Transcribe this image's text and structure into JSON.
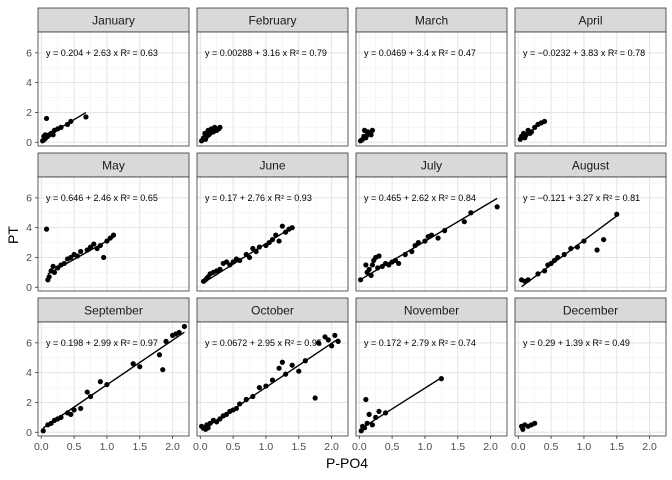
{
  "chart_data": {
    "type": "scatter",
    "xlabel": "P-PO4",
    "ylabel": "PT",
    "xlim": [
      -0.05,
      2.25
    ],
    "ylim": [
      -0.25,
      7.4
    ],
    "xticks": [
      0.0,
      0.5,
      1.0,
      1.5,
      2.0
    ],
    "xtick_labels": [
      "0.0",
      "0.5",
      "1.0",
      "1.5",
      "2.0"
    ],
    "yticks": [
      0,
      2,
      4,
      6
    ],
    "ytick_labels": [
      "0",
      "2",
      "4",
      "6"
    ],
    "grid": true,
    "facets": [
      {
        "name": "January",
        "equation": "y = 0.204 + 2.63 x   R² = 0.63",
        "intercept": 0.204,
        "slope": 2.63,
        "fit_x": [
          0.02,
          0.68
        ],
        "points": [
          [
            0.02,
            0.1
          ],
          [
            0.04,
            0.4
          ],
          [
            0.05,
            0.2
          ],
          [
            0.06,
            0.5
          ],
          [
            0.07,
            0.3
          ],
          [
            0.08,
            1.6
          ],
          [
            0.1,
            0.4
          ],
          [
            0.12,
            0.5
          ],
          [
            0.15,
            0.6
          ],
          [
            0.18,
            0.5
          ],
          [
            0.2,
            0.8
          ],
          [
            0.25,
            0.9
          ],
          [
            0.3,
            1.0
          ],
          [
            0.4,
            1.2
          ],
          [
            0.45,
            1.4
          ],
          [
            0.68,
            1.7
          ]
        ]
      },
      {
        "name": "February",
        "equation": "y = 0.00288 + 3.16 x   R² = 0.79",
        "intercept": 0.00288,
        "slope": 3.16,
        "fit_x": [
          0.02,
          0.3
        ],
        "points": [
          [
            0.02,
            0.1
          ],
          [
            0.05,
            0.3
          ],
          [
            0.07,
            0.6
          ],
          [
            0.08,
            0.2
          ],
          [
            0.1,
            0.4
          ],
          [
            0.12,
            0.8
          ],
          [
            0.13,
            0.5
          ],
          [
            0.15,
            0.6
          ],
          [
            0.17,
            0.9
          ],
          [
            0.2,
            0.7
          ],
          [
            0.22,
            1.0
          ],
          [
            0.25,
            0.8
          ],
          [
            0.28,
            0.9
          ],
          [
            0.3,
            1.0
          ]
        ]
      },
      {
        "name": "March",
        "equation": "y = 0.0469 + 3.4 x   R² = 0.47",
        "intercept": 0.0469,
        "slope": 3.4,
        "fit_x": [
          0.02,
          0.2
        ],
        "points": [
          [
            0.02,
            0.1
          ],
          [
            0.05,
            0.2
          ],
          [
            0.07,
            0.4
          ],
          [
            0.08,
            0.8
          ],
          [
            0.1,
            0.3
          ],
          [
            0.12,
            0.5
          ],
          [
            0.13,
            0.7
          ],
          [
            0.15,
            0.6
          ],
          [
            0.18,
            0.5
          ],
          [
            0.2,
            0.8
          ]
        ]
      },
      {
        "name": "April",
        "equation": "y = −0.0232 + 3.83 x   R² = 0.78",
        "intercept": -0.0232,
        "slope": 3.83,
        "fit_x": [
          0.03,
          0.4
        ],
        "points": [
          [
            0.03,
            0.2
          ],
          [
            0.05,
            0.4
          ],
          [
            0.08,
            0.6
          ],
          [
            0.1,
            0.3
          ],
          [
            0.12,
            0.5
          ],
          [
            0.15,
            0.8
          ],
          [
            0.18,
            0.6
          ],
          [
            0.2,
            0.7
          ],
          [
            0.25,
            1.0
          ],
          [
            0.3,
            1.2
          ],
          [
            0.35,
            1.3
          ],
          [
            0.4,
            1.4
          ]
        ]
      },
      {
        "name": "May",
        "equation": "y = 0.646 + 2.46 x   R² = 0.65",
        "intercept": 0.646,
        "slope": 2.46,
        "fit_x": [
          0.1,
          1.1
        ],
        "points": [
          [
            0.08,
            3.9
          ],
          [
            0.1,
            0.5
          ],
          [
            0.12,
            0.7
          ],
          [
            0.15,
            1.1
          ],
          [
            0.18,
            1.4
          ],
          [
            0.2,
            1.0
          ],
          [
            0.25,
            1.3
          ],
          [
            0.3,
            1.5
          ],
          [
            0.35,
            1.6
          ],
          [
            0.4,
            1.9
          ],
          [
            0.45,
            2.0
          ],
          [
            0.5,
            2.2
          ],
          [
            0.55,
            2.1
          ],
          [
            0.6,
            2.4
          ],
          [
            0.7,
            2.5
          ],
          [
            0.75,
            2.7
          ],
          [
            0.8,
            2.9
          ],
          [
            0.85,
            2.6
          ],
          [
            0.9,
            2.8
          ],
          [
            0.95,
            2.0
          ],
          [
            1.0,
            3.1
          ],
          [
            1.05,
            3.3
          ],
          [
            1.1,
            3.5
          ]
        ]
      },
      {
        "name": "June",
        "equation": "y = 0.17 + 2.76 x   R² = 0.93",
        "intercept": 0.17,
        "slope": 2.76,
        "fit_x": [
          0.05,
          1.4
        ],
        "points": [
          [
            0.05,
            0.4
          ],
          [
            0.08,
            0.5
          ],
          [
            0.1,
            0.6
          ],
          [
            0.12,
            0.7
          ],
          [
            0.15,
            0.9
          ],
          [
            0.2,
            1.0
          ],
          [
            0.25,
            1.1
          ],
          [
            0.3,
            1.2
          ],
          [
            0.35,
            1.6
          ],
          [
            0.4,
            1.7
          ],
          [
            0.45,
            1.5
          ],
          [
            0.5,
            1.7
          ],
          [
            0.55,
            1.9
          ],
          [
            0.6,
            1.8
          ],
          [
            0.7,
            2.2
          ],
          [
            0.75,
            2.0
          ],
          [
            0.8,
            2.6
          ],
          [
            0.85,
            2.4
          ],
          [
            0.9,
            2.7
          ],
          [
            1.0,
            2.8
          ],
          [
            1.05,
            3.0
          ],
          [
            1.1,
            3.2
          ],
          [
            1.15,
            3.5
          ],
          [
            1.2,
            3.1
          ],
          [
            1.25,
            4.1
          ],
          [
            1.3,
            3.7
          ],
          [
            1.35,
            3.9
          ],
          [
            1.4,
            4.0
          ]
        ]
      },
      {
        "name": "July",
        "equation": "y = 0.465 + 2.62 x   R² = 0.84",
        "intercept": 0.465,
        "slope": 2.62,
        "fit_x": [
          0.02,
          2.1
        ],
        "points": [
          [
            0.02,
            0.5
          ],
          [
            0.1,
            1.5
          ],
          [
            0.12,
            1.0
          ],
          [
            0.15,
            1.2
          ],
          [
            0.18,
            0.8
          ],
          [
            0.2,
            1.5
          ],
          [
            0.22,
            1.8
          ],
          [
            0.25,
            2.0
          ],
          [
            0.28,
            1.3
          ],
          [
            0.3,
            2.1
          ],
          [
            0.35,
            1.4
          ],
          [
            0.4,
            1.6
          ],
          [
            0.45,
            1.5
          ],
          [
            0.5,
            1.7
          ],
          [
            0.55,
            1.8
          ],
          [
            0.6,
            1.6
          ],
          [
            0.7,
            2.2
          ],
          [
            0.8,
            2.4
          ],
          [
            0.85,
            2.8
          ],
          [
            0.9,
            3.0
          ],
          [
            1.0,
            3.1
          ],
          [
            1.05,
            3.4
          ],
          [
            1.1,
            3.5
          ],
          [
            1.2,
            3.3
          ],
          [
            1.3,
            3.8
          ],
          [
            1.6,
            4.4
          ],
          [
            1.7,
            5.0
          ],
          [
            2.1,
            5.4
          ]
        ]
      },
      {
        "name": "August",
        "equation": "y = −0.121 + 3.27 x   R² = 0.81",
        "intercept": -0.121,
        "slope": 3.27,
        "fit_x": [
          0.05,
          1.5
        ],
        "points": [
          [
            0.05,
            0.5
          ],
          [
            0.1,
            0.4
          ],
          [
            0.15,
            0.5
          ],
          [
            0.3,
            0.9
          ],
          [
            0.4,
            1.1
          ],
          [
            0.45,
            1.5
          ],
          [
            0.5,
            1.6
          ],
          [
            0.55,
            1.8
          ],
          [
            0.6,
            2.0
          ],
          [
            0.7,
            2.2
          ],
          [
            0.8,
            2.6
          ],
          [
            0.9,
            2.7
          ],
          [
            1.0,
            3.1
          ],
          [
            1.2,
            2.5
          ],
          [
            1.3,
            3.2
          ],
          [
            1.5,
            4.9
          ]
        ]
      },
      {
        "name": "September",
        "equation": "y = 0.198 + 2.99 x   R² = 0.97",
        "intercept": 0.198,
        "slope": 2.99,
        "fit_x": [
          0.03,
          2.18
        ],
        "points": [
          [
            0.03,
            0.1
          ],
          [
            0.1,
            0.5
          ],
          [
            0.15,
            0.6
          ],
          [
            0.2,
            0.8
          ],
          [
            0.25,
            0.9
          ],
          [
            0.3,
            1.0
          ],
          [
            0.4,
            1.3
          ],
          [
            0.45,
            1.2
          ],
          [
            0.5,
            1.5
          ],
          [
            0.6,
            1.6
          ],
          [
            0.7,
            2.7
          ],
          [
            0.75,
            2.4
          ],
          [
            0.9,
            3.4
          ],
          [
            1.0,
            3.2
          ],
          [
            1.4,
            4.6
          ],
          [
            1.5,
            4.4
          ],
          [
            1.8,
            5.2
          ],
          [
            1.85,
            4.2
          ],
          [
            1.9,
            6.1
          ],
          [
            2.0,
            6.5
          ],
          [
            2.05,
            6.6
          ],
          [
            2.1,
            6.7
          ],
          [
            2.18,
            7.1
          ]
        ]
      },
      {
        "name": "October",
        "equation": "y = 0.0672 + 2.95 x   R² = 0.95",
        "intercept": 0.0672,
        "slope": 2.95,
        "fit_x": [
          0.02,
          2.1
        ],
        "points": [
          [
            0.02,
            0.4
          ],
          [
            0.05,
            0.3
          ],
          [
            0.08,
            0.2
          ],
          [
            0.1,
            0.5
          ],
          [
            0.12,
            0.3
          ],
          [
            0.15,
            0.6
          ],
          [
            0.2,
            0.8
          ],
          [
            0.25,
            0.7
          ],
          [
            0.3,
            0.9
          ],
          [
            0.35,
            1.1
          ],
          [
            0.4,
            1.2
          ],
          [
            0.45,
            1.4
          ],
          [
            0.5,
            1.5
          ],
          [
            0.55,
            1.6
          ],
          [
            0.6,
            1.9
          ],
          [
            0.7,
            2.2
          ],
          [
            0.8,
            2.4
          ],
          [
            0.9,
            3.0
          ],
          [
            1.0,
            3.1
          ],
          [
            1.1,
            3.5
          ],
          [
            1.2,
            4.3
          ],
          [
            1.25,
            4.7
          ],
          [
            1.3,
            3.9
          ],
          [
            1.4,
            4.5
          ],
          [
            1.5,
            4.1
          ],
          [
            1.6,
            4.8
          ],
          [
            1.75,
            2.3
          ],
          [
            1.8,
            6.0
          ],
          [
            1.9,
            6.4
          ],
          [
            1.95,
            6.2
          ],
          [
            2.0,
            5.8
          ],
          [
            2.05,
            6.5
          ],
          [
            2.1,
            6.1
          ]
        ]
      },
      {
        "name": "November",
        "equation": "y = 0.172 + 2.79 x   R² = 0.74",
        "intercept": 0.172,
        "slope": 2.79,
        "fit_x": [
          0.03,
          1.25
        ],
        "points": [
          [
            0.03,
            0.1
          ],
          [
            0.05,
            0.4
          ],
          [
            0.08,
            0.3
          ],
          [
            0.1,
            2.2
          ],
          [
            0.12,
            0.6
          ],
          [
            0.15,
            1.2
          ],
          [
            0.2,
            0.5
          ],
          [
            0.25,
            1.0
          ],
          [
            0.3,
            1.4
          ],
          [
            0.4,
            1.3
          ],
          [
            1.25,
            3.6
          ]
        ]
      },
      {
        "name": "December",
        "equation": "y = 0.29 + 1.39 x   R² = 0.49",
        "intercept": 0.29,
        "slope": 1.39,
        "fit_x": [
          0.05,
          0.25
        ],
        "points": [
          [
            0.05,
            0.4
          ],
          [
            0.07,
            0.2
          ],
          [
            0.1,
            0.5
          ],
          [
            0.15,
            0.4
          ],
          [
            0.2,
            0.5
          ],
          [
            0.25,
            0.6
          ]
        ]
      }
    ]
  }
}
